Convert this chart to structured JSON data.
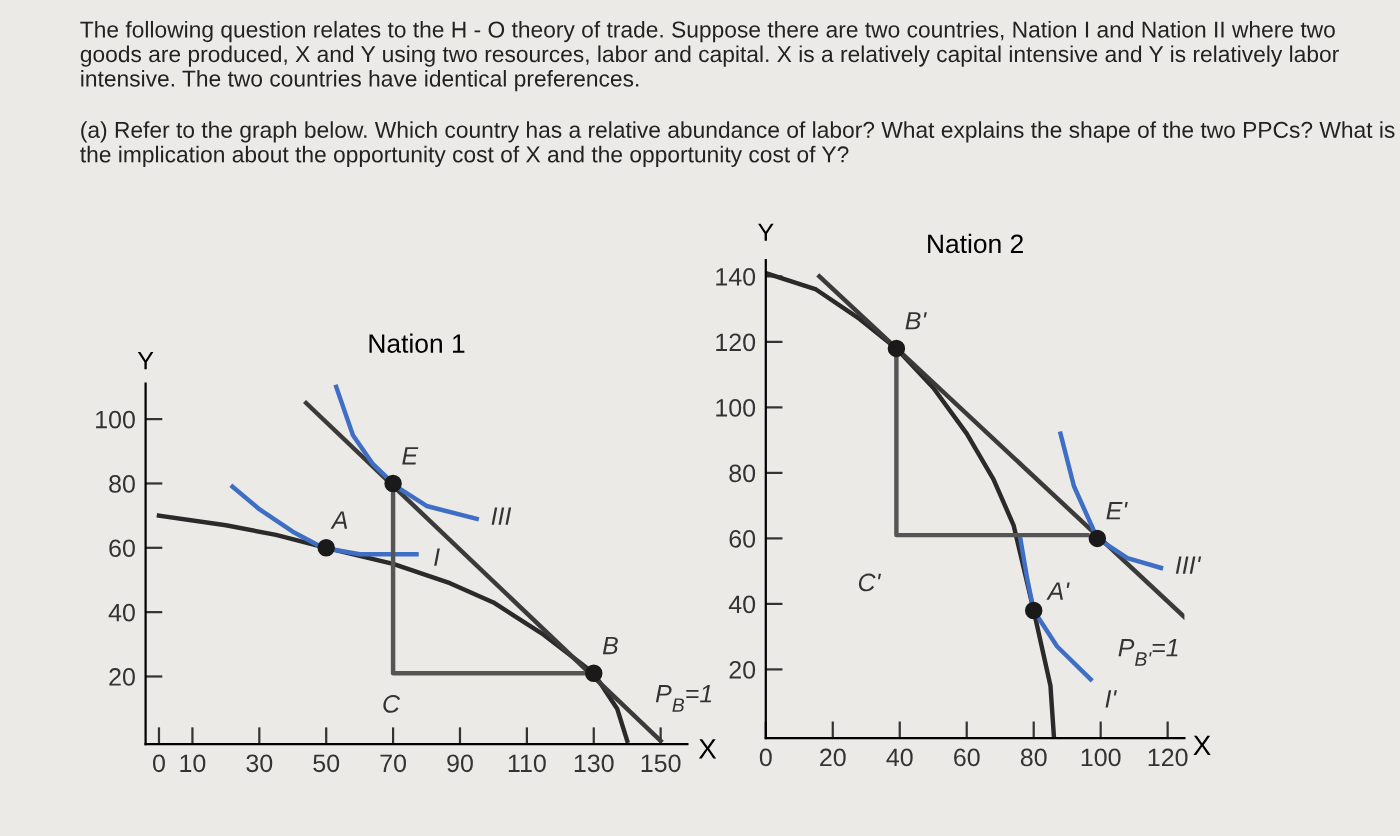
{
  "chart_data": [
    {
      "type": "line",
      "title": "Nation 1",
      "xlabel": "X",
      "ylabel": "Y",
      "xlim": [
        -4,
        158
      ],
      "ylim": [
        -1,
        111
      ],
      "xticks": [
        0,
        10,
        30,
        50,
        70,
        90,
        110,
        130,
        150
      ],
      "yticks": [
        20,
        40,
        60,
        80,
        100
      ],
      "grid": false,
      "legend": false,
      "series": [
        {
          "color": "#2a2a2a",
          "x": [
            0,
            20,
            35,
            50,
            70,
            87,
            100,
            115,
            130,
            137,
            140
          ],
          "values": [
            70,
            67,
            64,
            60,
            55,
            49,
            43,
            33,
            21,
            10,
            0
          ]
        },
        {
          "name": "P$_{B}$=1",
          "color": "#3a3a3a",
          "x": [
            44,
            150
          ],
          "values": [
            105,
            0
          ]
        },
        {
          "name": "III",
          "color": "#3f6fc4",
          "x": [
            53,
            58,
            64,
            71,
            80,
            95
          ],
          "values": [
            110,
            95,
            86,
            79,
            73,
            69
          ]
        },
        {
          "name": "I",
          "color": "#3f6fc4",
          "x": [
            22,
            30,
            40,
            49,
            60,
            77
          ],
          "values": [
            79,
            72,
            65,
            60,
            58,
            58
          ]
        },
        {
          "name": "C",
          "color": "#555555",
          "x": [
            130,
            70,
            70
          ],
          "values": [
            21,
            21,
            80
          ]
        },
        {
          "name": "A",
          "type": "scatter",
          "color": "#1a1a1a",
          "x": [
            50
          ],
          "values": [
            60
          ]
        },
        {
          "name": "E",
          "type": "scatter",
          "color": "#1a1a1a",
          "x": [
            70
          ],
          "values": [
            80
          ]
        },
        {
          "name": "B",
          "type": "scatter",
          "color": "#1a1a1a",
          "x": [
            130
          ],
          "values": [
            21
          ]
        }
      ],
      "annotations": [
        "The following question relates to the H - O theory of trade. Suppose there are two countries, Nation I and Nation II where two goods are produced, X and Y using two resources, labor and capital. X is a relatively capital intensive and Y is relatively labor intensive. The two countries have identical preferences.",
        "(a) Refer to the graph below. Which country has a relative abundance of labor? What explains the shape of the two PPCs? What is the implication about the opportunity cost of X and the opportunity cost of Y?"
      ]
    },
    {
      "type": "line",
      "title": "Nation 2",
      "xlabel": "X",
      "ylabel": "Y",
      "xlim": [
        0,
        125
      ],
      "ylim": [
        -1,
        145
      ],
      "xticks": [
        0,
        20,
        40,
        60,
        80,
        100,
        120
      ],
      "yticks": [
        20,
        40,
        60,
        80,
        100,
        120,
        140
      ],
      "grid": false,
      "legend": false,
      "series": [
        {
          "color": "#2a2a2a",
          "x": [
            0,
            15,
            28,
            39,
            50,
            60,
            68,
            74,
            80,
            85,
            86
          ],
          "values": [
            141,
            136,
            127,
            118,
            106,
            92,
            78,
            64,
            38,
            15,
            0
          ]
        },
        {
          "name": "P$_{B'}$=1",
          "color": "#3a3a3a",
          "x": [
            16,
            125
          ],
          "values": [
            140,
            36
          ]
        },
        {
          "name": "III'",
          "color": "#3f6fc4",
          "x": [
            88,
            92,
            99,
            108,
            118
          ],
          "values": [
            92,
            76,
            60,
            54,
            51
          ]
        },
        {
          "name": "I'",
          "color": "#3f6fc4",
          "x": [
            76,
            78,
            80,
            87,
            97
          ],
          "values": [
            60,
            48,
            38,
            27,
            17
          ]
        },
        {
          "name": "C'",
          "color": "#555555",
          "x": [
            39,
            39,
            96
          ],
          "values": [
            118,
            61,
            61
          ]
        },
        {
          "name": "B'",
          "type": "scatter",
          "color": "#1a1a1a",
          "x": [
            39
          ],
          "values": [
            118
          ]
        },
        {
          "name": "E'",
          "type": "scatter",
          "color": "#1a1a1a",
          "x": [
            99
          ],
          "values": [
            60
          ]
        },
        {
          "name": "A'",
          "type": "scatter",
          "color": "#1a1a1a",
          "x": [
            80
          ],
          "values": [
            38
          ]
        }
      ]
    }
  ]
}
